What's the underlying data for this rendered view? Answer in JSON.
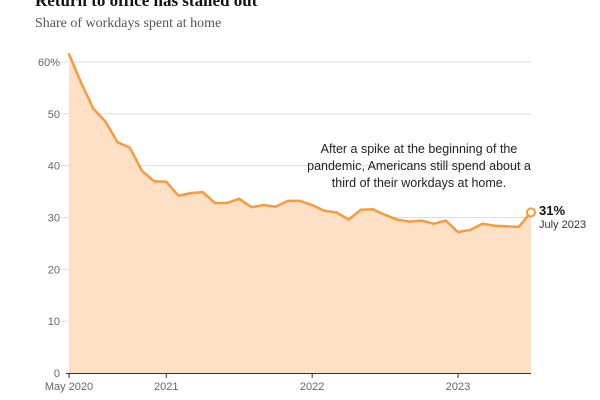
{
  "header": {
    "title": "Return to office has stalled out",
    "subtitle": "Share of workdays spent at home"
  },
  "annotation": {
    "text": "After a spike at the beginning of the pandemic, Americans still spend about a third of their workdays at home."
  },
  "callout": {
    "value": "31%",
    "date": "July 2023"
  },
  "colors": {
    "line": "#f79b3c",
    "area": "#fde0c5",
    "grid": "#dddddd",
    "axis": "#333333"
  },
  "chart_data": {
    "type": "area",
    "title": "Return to office has stalled out",
    "subtitle": "Share of workdays spent at home",
    "xlabel": "",
    "ylabel": "",
    "x_tick_labels": [
      "May 2020",
      "2021",
      "2022",
      "2023"
    ],
    "y_ticks": [
      0,
      10,
      20,
      30,
      40,
      50,
      60
    ],
    "y_tick_labels": [
      "0",
      "10",
      "20",
      "30",
      "40",
      "50",
      "60%"
    ],
    "ylim": [
      0,
      62
    ],
    "x_start": "2020-05",
    "x_end": "2023-07",
    "grid": true,
    "series": [
      {
        "x": [
          "2020-05",
          "2020-06",
          "2020-07",
          "2020-08",
          "2020-09",
          "2020-10",
          "2020-11",
          "2020-12",
          "2021-01",
          "2021-02",
          "2021-03",
          "2021-04",
          "2021-05",
          "2021-06",
          "2021-07",
          "2021-08",
          "2021-09",
          "2021-10",
          "2021-11",
          "2021-12",
          "2022-01",
          "2022-02",
          "2022-03",
          "2022-04",
          "2022-05",
          "2022-06",
          "2022-07",
          "2022-08",
          "2022-09",
          "2022-10",
          "2022-11",
          "2022-12",
          "2023-01",
          "2023-02",
          "2023-03",
          "2023-04",
          "2023-05",
          "2023-06",
          "2023-07"
        ],
        "values": [
          61.5,
          56,
          51,
          48.5,
          44.5,
          43.5,
          39,
          37,
          36.9,
          34.2,
          34.7,
          34.9,
          32.8,
          32.8,
          33.6,
          32,
          32.4,
          32.1,
          33.2,
          33.2,
          32.4,
          31.3,
          31,
          29.6,
          31.5,
          31.6,
          30.5,
          29.6,
          29.2,
          29.4,
          28.8,
          29.4,
          27.2,
          27.6,
          28.8,
          28.4,
          28.3,
          28.2,
          31
        ]
      }
    ]
  }
}
